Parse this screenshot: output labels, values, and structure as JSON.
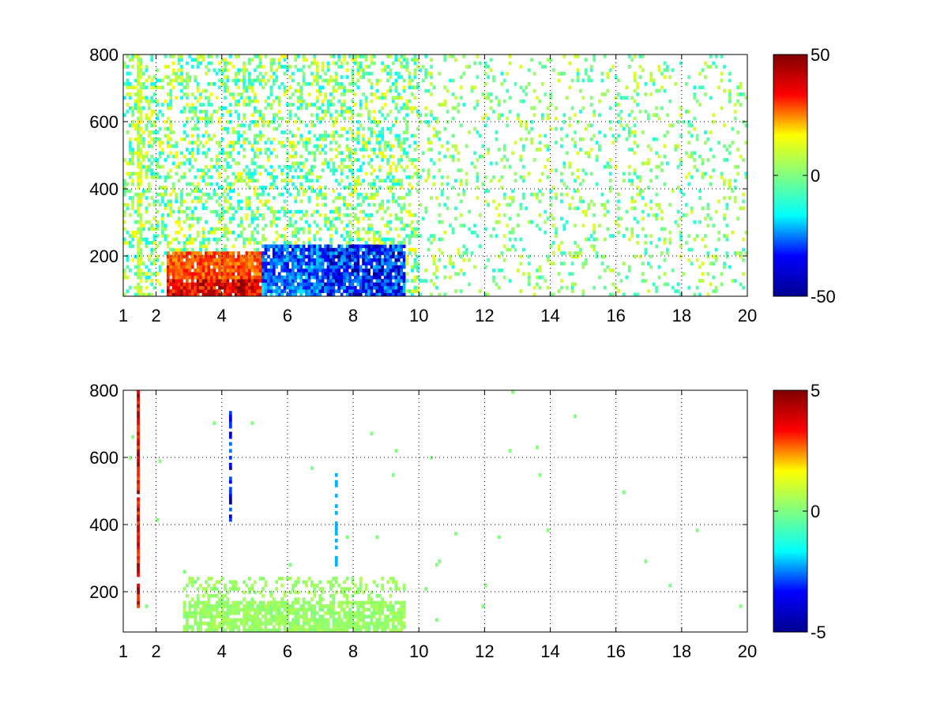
{
  "figure": {
    "background": "#ffffff",
    "colormap": "jet",
    "colormap_stops": [
      "#00008f",
      "#0000ff",
      "#00ffff",
      "#80ff80",
      "#ffff00",
      "#ff0000",
      "#800000"
    ]
  },
  "chart_data": [
    {
      "type": "heatmap",
      "title": "",
      "xlabel": "",
      "ylabel": "",
      "xlim": [
        1,
        20
      ],
      "ylim": [
        80,
        800
      ],
      "x_ticks": [
        1,
        2,
        4,
        6,
        8,
        10,
        12,
        14,
        16,
        18,
        20
      ],
      "x_tick_labels": [
        "1",
        "2",
        "4",
        "6",
        "8",
        "10",
        "12",
        "14",
        "16",
        "18",
        "20"
      ],
      "y_ticks": [
        200,
        400,
        600,
        800
      ],
      "y_tick_labels": [
        "200",
        "400",
        "600",
        "800"
      ],
      "grid": true,
      "colorbar": {
        "range": [
          -50,
          50
        ],
        "ticks": [
          -50,
          0,
          50
        ],
        "tick_labels": [
          "-50",
          "0",
          "50"
        ]
      },
      "estimated_regions": [
        {
          "x": [
            2.5,
            5.0
          ],
          "y": [
            80,
            200
          ],
          "value": 45
        },
        {
          "x": [
            5.0,
            7.0
          ],
          "y": [
            80,
            220
          ],
          "value": -30
        },
        {
          "x": [
            7.0,
            9.6
          ],
          "y": [
            80,
            180
          ],
          "value": -40
        },
        {
          "x": [
            1.4,
            1.5
          ],
          "y": [
            80,
            800
          ],
          "value": 15
        },
        {
          "x": [
            2.0,
            10.0
          ],
          "y": [
            200,
            800
          ],
          "value": 0
        },
        {
          "x": [
            10.0,
            20.0
          ],
          "y": [
            80,
            800
          ],
          "value": 0
        }
      ]
    },
    {
      "type": "heatmap",
      "title": "",
      "xlabel": "",
      "ylabel": "",
      "xlim": [
        1,
        20
      ],
      "ylim": [
        80,
        800
      ],
      "x_ticks": [
        1,
        2,
        4,
        6,
        8,
        10,
        12,
        14,
        16,
        18,
        20
      ],
      "x_tick_labels": [
        "1",
        "2",
        "4",
        "6",
        "8",
        "10",
        "12",
        "14",
        "16",
        "18",
        "20"
      ],
      "y_ticks": [
        200,
        400,
        600,
        800
      ],
      "y_tick_labels": [
        "200",
        "400",
        "600",
        "800"
      ],
      "grid": true,
      "colorbar": {
        "range": [
          -5,
          5
        ],
        "ticks": [
          -5,
          0,
          5
        ],
        "tick_labels": [
          "-5",
          "0",
          "5"
        ]
      },
      "estimated_regions": [
        {
          "x": [
            3.0,
            9.5
          ],
          "y": [
            80,
            240
          ],
          "value": 0.5
        },
        {
          "x": [
            1.4,
            1.5
          ],
          "y": [
            150,
            790
          ],
          "value": 5
        },
        {
          "x": [
            4.25,
            4.3
          ],
          "y": [
            400,
            750
          ],
          "value": -4
        },
        {
          "x": [
            7.45,
            7.5
          ],
          "y": [
            250,
            550
          ],
          "value": -2
        }
      ]
    }
  ]
}
